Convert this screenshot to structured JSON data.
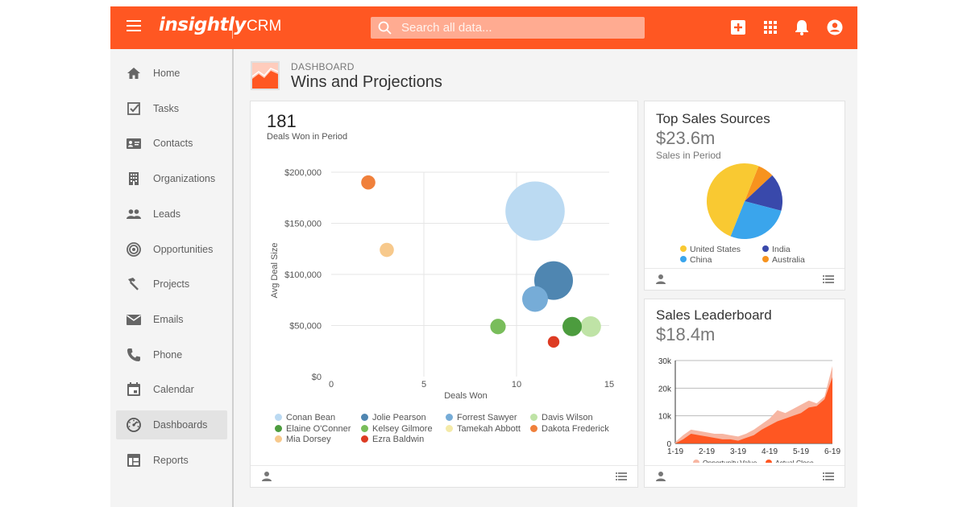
{
  "app": {
    "logo": "insightly",
    "product": "CRM",
    "search_placeholder": "Search all data...",
    "accent": "#ff5722"
  },
  "topbar_icons": [
    "add-icon",
    "apps-grid-icon",
    "bell-icon",
    "account-icon"
  ],
  "sidebar": {
    "items": [
      {
        "label": "Home",
        "icon": "home-icon"
      },
      {
        "label": "Tasks",
        "icon": "tasks-checkbox-icon"
      },
      {
        "label": "Contacts",
        "icon": "contact-card-icon"
      },
      {
        "label": "Organizations",
        "icon": "building-icon"
      },
      {
        "label": "Leads",
        "icon": "people-icon"
      },
      {
        "label": "Opportunities",
        "icon": "target-icon"
      },
      {
        "label": "Projects",
        "icon": "hammer-icon"
      },
      {
        "label": "Emails",
        "icon": "envelope-icon"
      },
      {
        "label": "Phone",
        "icon": "phone-icon"
      },
      {
        "label": "Calendar",
        "icon": "calendar-icon"
      },
      {
        "label": "Dashboards",
        "icon": "dashboard-gauge-icon",
        "active": true
      },
      {
        "label": "Reports",
        "icon": "reports-table-icon"
      }
    ]
  },
  "page": {
    "crumb": "DASHBOARD",
    "title": "Wins and Projections"
  },
  "main_card": {
    "count": "181",
    "count_label": "Deals Won in Period"
  },
  "sources_card": {
    "title": "Top Sales Sources",
    "amount": "$23.6m",
    "subtitle": "Sales in Period"
  },
  "leader_card": {
    "title": "Sales Leaderboard",
    "amount": "$18.4m"
  },
  "chart_data": [
    {
      "type": "scatter",
      "xlabel": "Deals Won",
      "ylabel": "Avg Deal Size",
      "x_ticks": [
        "0",
        "5",
        "10",
        "15"
      ],
      "y_ticks": [
        "$0",
        "$50,000",
        "$100,000",
        "$150,000",
        "$200,000"
      ],
      "xlim": [
        0,
        15
      ],
      "ylim": [
        0,
        200000
      ],
      "legend_position": "bottom",
      "series": [
        {
          "name": "Conan Bean",
          "color": "#bbdaf2",
          "x": 11,
          "y": 162000,
          "size": 4.6
        },
        {
          "name": "Jolie Pearson",
          "color": "#4f86b1",
          "x": 12,
          "y": 94000,
          "size": 3.0
        },
        {
          "name": "Forrest Sawyer",
          "color": "#76acd7",
          "x": 11,
          "y": 76000,
          "size": 2.0
        },
        {
          "name": "Davis Wilson",
          "color": "#bfe3a6",
          "x": 14,
          "y": 49000,
          "size": 1.6
        },
        {
          "name": "Elaine O'Conner",
          "color": "#4c9c3e",
          "x": 13,
          "y": 49000,
          "size": 1.5
        },
        {
          "name": "Kelsey Gilmore",
          "color": "#79bd5b",
          "x": 9,
          "y": 49000,
          "size": 1.2
        },
        {
          "name": "Tamekah Abbott",
          "color": "#f4eaa8",
          "x": null,
          "y": null,
          "size": 0
        },
        {
          "name": "Dakota Frederick",
          "color": "#f0803b",
          "x": 2,
          "y": 190000,
          "size": 1.1
        },
        {
          "name": "Mia Dorsey",
          "color": "#f7c98c",
          "x": 3,
          "y": 124000,
          "size": 1.1
        },
        {
          "name": "Ezra Baldwin",
          "color": "#dd3b23",
          "x": 12,
          "y": 34000,
          "size": 0.9
        }
      ]
    },
    {
      "type": "pie",
      "legend_position": "bottom",
      "slices": [
        {
          "name": "United States",
          "value": 50,
          "color": "#f9c932"
        },
        {
          "name": "China",
          "value": 27,
          "color": "#3aa5ec"
        },
        {
          "name": "India",
          "value": 16,
          "color": "#3949ab"
        },
        {
          "name": "Australia",
          "value": 7,
          "color": "#f7931e"
        }
      ]
    },
    {
      "type": "area",
      "categories": [
        "1-19",
        "2-19",
        "3-19",
        "4-19",
        "5-19",
        "6-19"
      ],
      "y_ticks": [
        "0",
        "10k",
        "20k",
        "30k"
      ],
      "ylim": [
        0,
        30000
      ],
      "legend_position": "bottom",
      "series": [
        {
          "name": "Opportunity Value",
          "color": "#f7b6a2",
          "x": [
            0,
            1,
            2,
            3,
            4,
            5,
            6,
            7,
            8,
            9,
            10,
            11,
            12,
            13,
            14,
            15,
            16,
            17,
            18,
            19,
            20
          ],
          "values": [
            500,
            3000,
            5000,
            4500,
            4000,
            3500,
            3500,
            3000,
            2500,
            3500,
            5000,
            7000,
            9000,
            12000,
            11000,
            12500,
            14000,
            15500,
            14500,
            17000,
            28000
          ]
        },
        {
          "name": "Actual Close",
          "color": "#ff5722",
          "x": [
            0,
            1,
            2,
            3,
            4,
            5,
            6,
            7,
            8,
            9,
            10,
            11,
            12,
            13,
            14,
            15,
            16,
            17,
            18,
            19,
            20
          ],
          "values": [
            0,
            1500,
            3500,
            3000,
            2500,
            2000,
            1500,
            1500,
            1000,
            2000,
            3000,
            5000,
            6500,
            8000,
            9000,
            10000,
            11000,
            13000,
            13500,
            16000,
            24000
          ]
        }
      ]
    }
  ]
}
